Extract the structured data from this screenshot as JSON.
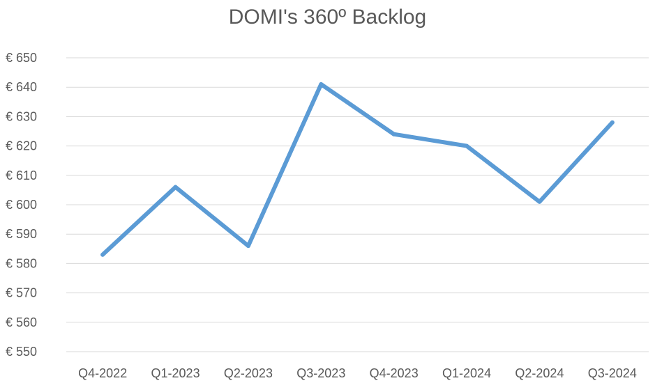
{
  "colors": {
    "line": "#5B9BD5",
    "grid": "#D9D9D9",
    "text": "#595959",
    "background": "#FFFFFF"
  },
  "chart_data": {
    "type": "line",
    "title": "DOMI's 360º Backlog",
    "xlabel": "",
    "ylabel": "",
    "categories": [
      "Q4-2022",
      "Q1-2023",
      "Q2-2023",
      "Q3-2023",
      "Q4-2023",
      "Q1-2024",
      "Q2-2024",
      "Q3-2024"
    ],
    "series": [
      {
        "values": [
          583,
          606,
          586,
          641,
          624,
          620,
          601,
          628
        ]
      }
    ],
    "ylim": [
      550,
      650
    ],
    "yticks": [
      550,
      560,
      570,
      580,
      590,
      600,
      610,
      620,
      630,
      640,
      650
    ],
    "ytick_labels": [
      "€ 550",
      "€ 560",
      "€ 570",
      "€ 580",
      "€ 590",
      "€ 600",
      "€ 610",
      "€ 620",
      "€ 630",
      "€ 640",
      "€ 650"
    ],
    "grid": true,
    "legend": "none"
  }
}
